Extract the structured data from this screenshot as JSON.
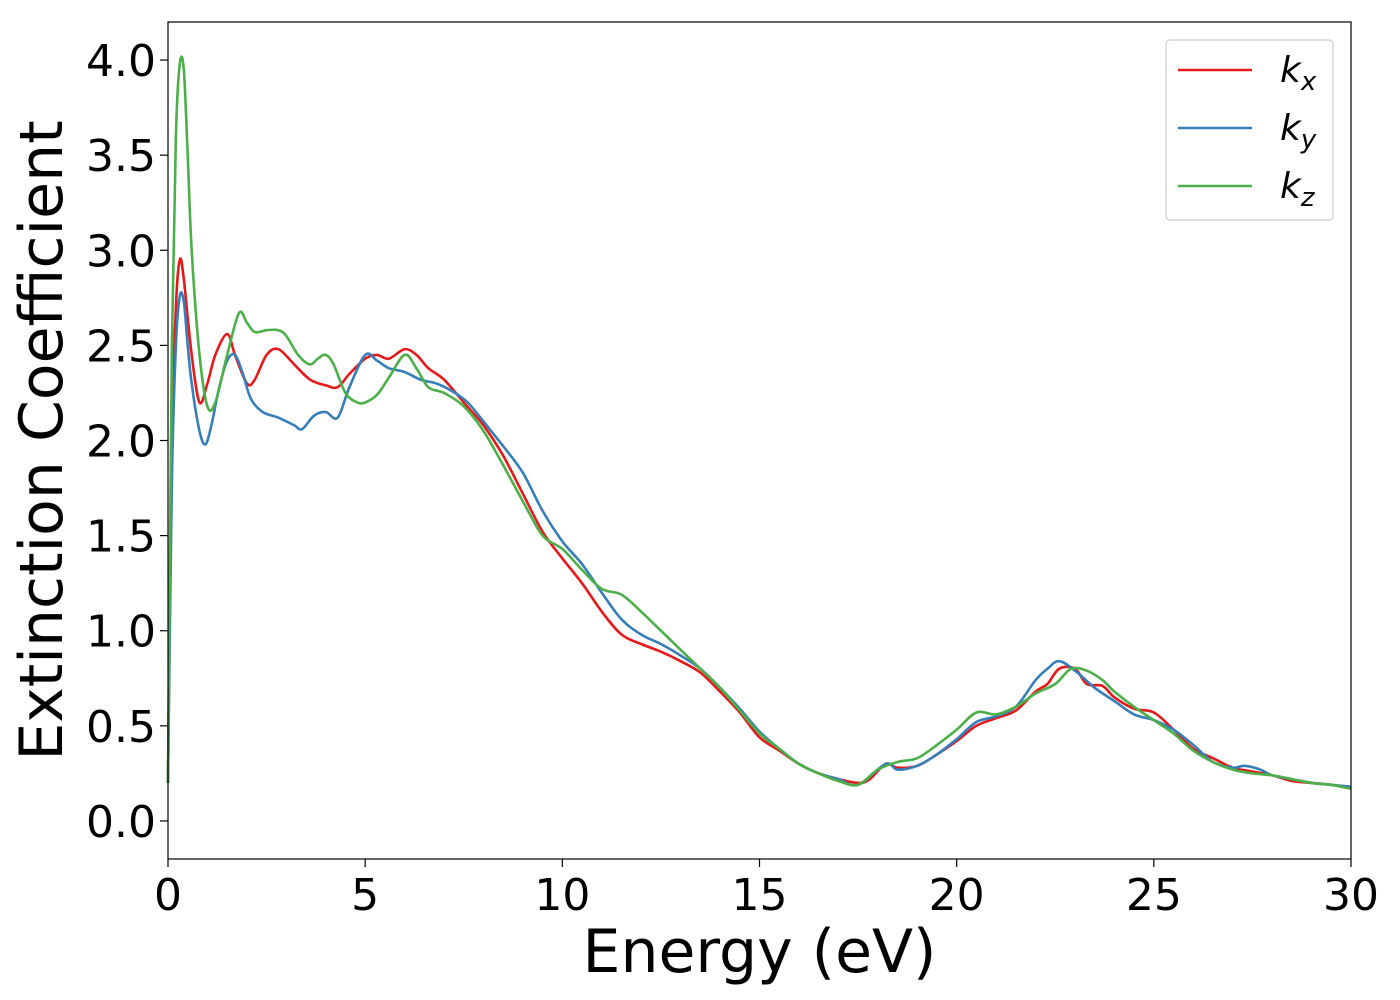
{
  "chart_data": {
    "type": "line",
    "title": "",
    "xlabel": "Energy (eV)",
    "ylabel": "Extinction Coefficient",
    "xlim": [
      0,
      30
    ],
    "ylim": [
      -0.2,
      4.2
    ],
    "xticks": [
      0,
      5,
      10,
      15,
      20,
      25,
      30
    ],
    "xtick_labels": [
      "0",
      "5",
      "10",
      "15",
      "20",
      "25",
      "30"
    ],
    "yticks": [
      0.0,
      0.5,
      1.0,
      1.5,
      2.0,
      2.5,
      3.0,
      3.5,
      4.0
    ],
    "ytick_labels": [
      "0.0",
      "0.5",
      "1.0",
      "1.5",
      "2.0",
      "2.5",
      "3.0",
      "3.5",
      "4.0"
    ],
    "grid": false,
    "legend_position": "top-right",
    "series": [
      {
        "name": "k_x",
        "label_main": "k",
        "label_sub": "x",
        "color": "#e41a1c",
        "x": [
          0,
          0.1,
          0.2,
          0.3,
          0.4,
          0.6,
          0.8,
          1.0,
          1.2,
          1.5,
          1.7,
          2.0,
          2.2,
          2.5,
          2.8,
          3.2,
          3.6,
          4.0,
          4.3,
          4.6,
          5.0,
          5.3,
          5.6,
          6.0,
          6.3,
          6.6,
          7.0,
          7.5,
          8.0,
          8.5,
          9.0,
          9.5,
          10.0,
          10.5,
          11.0,
          11.5,
          12.0,
          12.5,
          13.0,
          13.5,
          14.0,
          14.5,
          15.0,
          15.5,
          16.0,
          16.5,
          17.0,
          17.5,
          17.8,
          18.2,
          18.5,
          19.0,
          19.5,
          20.0,
          20.5,
          21.0,
          21.5,
          22.0,
          22.3,
          22.6,
          23.0,
          23.3,
          23.7,
          24.0,
          24.5,
          25.0,
          25.5,
          26.0,
          26.5,
          27.0,
          27.5,
          28.0,
          28.5,
          29.0,
          29.5,
          30.0
        ],
        "y": [
          0.2,
          2.0,
          2.7,
          2.95,
          2.85,
          2.45,
          2.2,
          2.3,
          2.45,
          2.56,
          2.45,
          2.3,
          2.32,
          2.45,
          2.48,
          2.4,
          2.32,
          2.29,
          2.28,
          2.35,
          2.43,
          2.45,
          2.43,
          2.48,
          2.45,
          2.38,
          2.32,
          2.2,
          2.08,
          1.92,
          1.72,
          1.52,
          1.38,
          1.25,
          1.1,
          0.98,
          0.93,
          0.89,
          0.84,
          0.78,
          0.68,
          0.57,
          0.44,
          0.37,
          0.3,
          0.25,
          0.22,
          0.2,
          0.22,
          0.3,
          0.28,
          0.29,
          0.35,
          0.42,
          0.5,
          0.54,
          0.58,
          0.68,
          0.72,
          0.8,
          0.8,
          0.72,
          0.71,
          0.65,
          0.59,
          0.57,
          0.48,
          0.38,
          0.33,
          0.28,
          0.26,
          0.24,
          0.21,
          0.2,
          0.19,
          0.17
        ]
      },
      {
        "name": "k_y",
        "label_main": "k",
        "label_sub": "y",
        "color": "#377eb8",
        "x": [
          0,
          0.1,
          0.2,
          0.3,
          0.4,
          0.5,
          0.6,
          0.8,
          0.95,
          1.1,
          1.3,
          1.5,
          1.7,
          1.9,
          2.1,
          2.4,
          2.8,
          3.2,
          3.4,
          3.7,
          4.0,
          4.3,
          4.6,
          5.0,
          5.3,
          5.6,
          6.0,
          6.4,
          6.8,
          7.2,
          7.6,
          8.0,
          8.5,
          9.0,
          9.5,
          10.0,
          10.5,
          11.0,
          11.5,
          12.0,
          12.5,
          13.0,
          13.5,
          14.0,
          14.5,
          15.0,
          15.5,
          16.0,
          16.5,
          17.0,
          17.5,
          18.2,
          18.5,
          19.0,
          19.5,
          20.0,
          20.5,
          21.0,
          21.5,
          22.0,
          22.3,
          22.6,
          23.0,
          23.5,
          24.0,
          24.5,
          25.0,
          25.5,
          26.0,
          26.5,
          27.0,
          27.3,
          27.7,
          28.0,
          28.5,
          29.0,
          29.5,
          30.0
        ],
        "y": [
          0.2,
          1.8,
          2.5,
          2.76,
          2.73,
          2.5,
          2.3,
          2.05,
          1.98,
          2.08,
          2.28,
          2.42,
          2.45,
          2.35,
          2.22,
          2.15,
          2.12,
          2.08,
          2.06,
          2.13,
          2.15,
          2.12,
          2.28,
          2.45,
          2.42,
          2.38,
          2.36,
          2.32,
          2.3,
          2.26,
          2.2,
          2.1,
          1.97,
          1.83,
          1.63,
          1.47,
          1.35,
          1.2,
          1.06,
          0.98,
          0.93,
          0.87,
          0.8,
          0.7,
          0.59,
          0.47,
          0.38,
          0.3,
          0.25,
          0.22,
          0.19,
          0.3,
          0.27,
          0.29,
          0.35,
          0.43,
          0.52,
          0.55,
          0.6,
          0.74,
          0.8,
          0.84,
          0.79,
          0.7,
          0.63,
          0.56,
          0.53,
          0.48,
          0.4,
          0.31,
          0.28,
          0.29,
          0.27,
          0.24,
          0.22,
          0.2,
          0.19,
          0.18
        ]
      },
      {
        "name": "k_z",
        "label_main": "k",
        "label_sub": "z",
        "color": "#4daf4a",
        "x": [
          0,
          0.1,
          0.2,
          0.3,
          0.4,
          0.5,
          0.6,
          0.8,
          1.0,
          1.2,
          1.5,
          1.8,
          2.0,
          2.2,
          2.5,
          2.8,
          3.0,
          3.3,
          3.6,
          3.8,
          4.0,
          4.2,
          4.5,
          4.8,
          5.0,
          5.3,
          5.6,
          6.0,
          6.3,
          6.6,
          7.0,
          7.5,
          8.0,
          8.5,
          9.0,
          9.5,
          10.0,
          10.5,
          11.0,
          11.5,
          12.0,
          12.5,
          13.0,
          13.5,
          14.0,
          14.5,
          15.0,
          15.5,
          16.0,
          16.5,
          17.0,
          17.5,
          18.0,
          18.5,
          19.0,
          19.5,
          20.0,
          20.5,
          21.0,
          21.5,
          22.0,
          22.5,
          22.9,
          23.3,
          23.7,
          24.0,
          24.5,
          25.0,
          25.5,
          26.0,
          26.5,
          27.0,
          27.5,
          28.0,
          28.5,
          29.0,
          29.5,
          30.0
        ],
        "y": [
          0.2,
          2.5,
          3.6,
          3.98,
          3.95,
          3.5,
          3.0,
          2.45,
          2.18,
          2.2,
          2.45,
          2.67,
          2.62,
          2.57,
          2.58,
          2.58,
          2.55,
          2.45,
          2.4,
          2.43,
          2.45,
          2.4,
          2.25,
          2.2,
          2.2,
          2.24,
          2.33,
          2.45,
          2.38,
          2.28,
          2.25,
          2.18,
          2.05,
          1.87,
          1.68,
          1.5,
          1.43,
          1.32,
          1.22,
          1.19,
          1.1,
          1.0,
          0.9,
          0.8,
          0.7,
          0.58,
          0.46,
          0.38,
          0.3,
          0.25,
          0.21,
          0.19,
          0.27,
          0.31,
          0.33,
          0.4,
          0.48,
          0.57,
          0.56,
          0.6,
          0.67,
          0.72,
          0.8,
          0.79,
          0.74,
          0.68,
          0.6,
          0.53,
          0.46,
          0.37,
          0.31,
          0.27,
          0.25,
          0.24,
          0.22,
          0.2,
          0.19,
          0.17
        ]
      }
    ]
  }
}
